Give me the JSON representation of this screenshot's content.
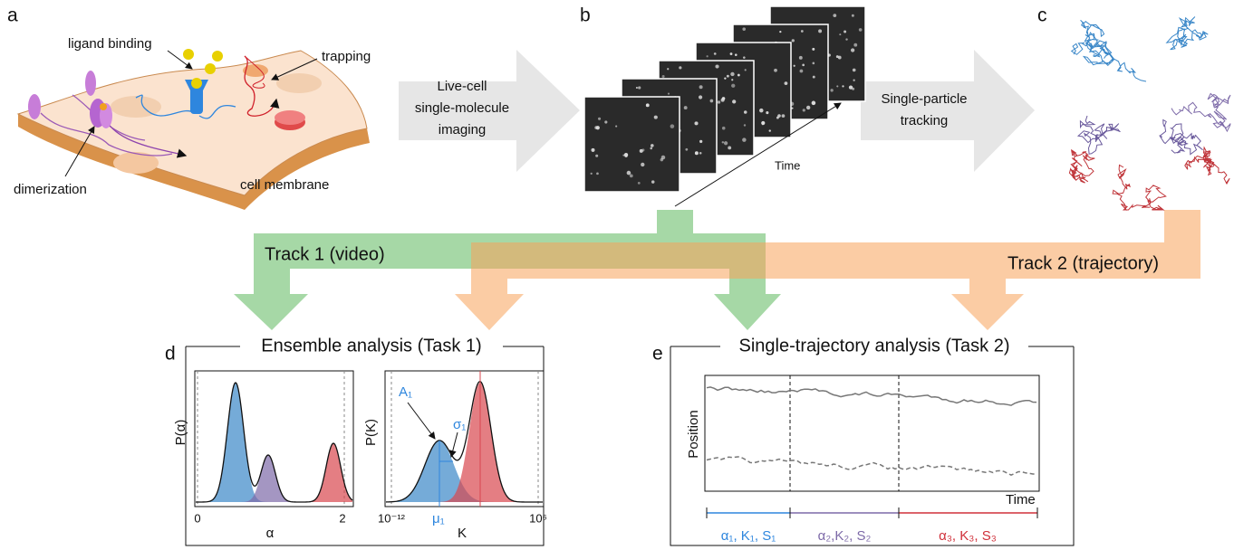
{
  "panel_labels": [
    "a",
    "b",
    "c",
    "d",
    "e"
  ],
  "illustration": {
    "ligand_binding": "ligand binding",
    "trapping": "trapping",
    "dimerization": "dimerization",
    "cell_membrane": "cell membrane"
  },
  "step1": [
    "Live-cell",
    "single-molecule",
    "imaging"
  ],
  "step2": [
    "Single-particle",
    "tracking"
  ],
  "time_axis": "Time",
  "track1": "Track 1 (video)",
  "track2": "Track 2 (trajectory)",
  "task1": {
    "title": "Ensemble analysis (Task 1)",
    "plot1": {
      "ylabel": "P(α)",
      "xlabel": "α",
      "ticks": [
        "0",
        "2"
      ]
    },
    "plot2": {
      "ylabel": "P(K)",
      "xlabel": "K",
      "ticks": [
        "10⁻¹²",
        "10⁶"
      ],
      "annotations": [
        "A₁",
        "σ₁",
        "μ₁"
      ]
    }
  },
  "task2": {
    "title": "Single-trajectory analysis (Task 2)",
    "ylabel": "Position",
    "xlabel": "Time",
    "segments": [
      "α₁, K₁, S₁",
      "α₂,K₂, S₂",
      "α₃, K₃, S₃"
    ]
  }
}
